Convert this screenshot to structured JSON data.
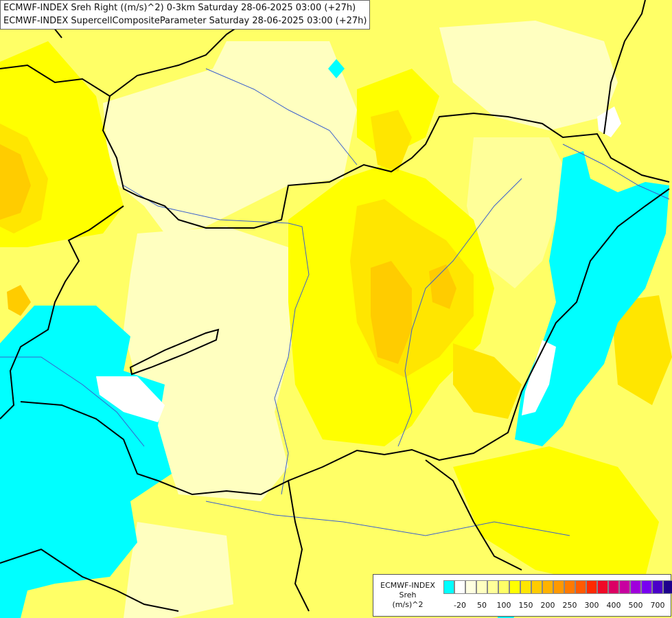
{
  "titles": {
    "line1": "ECMWF-INDEX Sreh Right ((m/s)^2) 0-3km Saturday 28-06-2025 03:00 (+27h)",
    "line2": "ECMWF-INDEX SupercellCompositeParameter Saturday 28-06-2025 03:00 (+27h)"
  },
  "legend": {
    "source": "ECMWF-INDEX",
    "variable": "Sreh",
    "unit": "(m/s)^2",
    "colors": [
      "#00ffff",
      "#ffffff",
      "#ffffe0",
      "#ffffc0",
      "#ffff99",
      "#ffff66",
      "#ffff00",
      "#ffe600",
      "#ffcc00",
      "#ffb300",
      "#ff9900",
      "#ff7a00",
      "#ff5a00",
      "#ff2a00",
      "#f00a28",
      "#dc0064",
      "#c800a0",
      "#a000dc",
      "#7800f0",
      "#4b00c8",
      "#1e008c"
    ],
    "ticks": [
      "-20",
      "50",
      "100",
      "150",
      "200",
      "250",
      "300",
      "400",
      "500",
      "700"
    ]
  },
  "map_colors": {
    "very_light": "#ffffc0",
    "light": "#ffff99",
    "medium": "#ffff66",
    "strong": "#ffff00",
    "gold": "#ffe600",
    "amber": "#ffcc00",
    "orange": "#ffb300",
    "negative": "#00ffff",
    "white": "#ffffff",
    "border": "#000000",
    "river": "#3a5fcd"
  }
}
